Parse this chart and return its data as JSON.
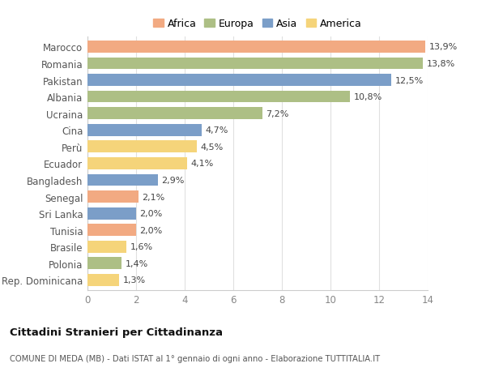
{
  "categories": [
    "Marocco",
    "Romania",
    "Pakistan",
    "Albania",
    "Ucraina",
    "Cina",
    "Perù",
    "Ecuador",
    "Bangladesh",
    "Senegal",
    "Sri Lanka",
    "Tunisia",
    "Brasile",
    "Polonia",
    "Rep. Dominicana"
  ],
  "values": [
    13.9,
    13.8,
    12.5,
    10.8,
    7.2,
    4.7,
    4.5,
    4.1,
    2.9,
    2.1,
    2.0,
    2.0,
    1.6,
    1.4,
    1.3
  ],
  "labels": [
    "13,9%",
    "13,8%",
    "12,5%",
    "10,8%",
    "7,2%",
    "4,7%",
    "4,5%",
    "4,1%",
    "2,9%",
    "2,1%",
    "2,0%",
    "2,0%",
    "1,6%",
    "1,4%",
    "1,3%"
  ],
  "continents": [
    "Africa",
    "Europa",
    "Asia",
    "Europa",
    "Europa",
    "Asia",
    "America",
    "America",
    "Asia",
    "Africa",
    "Asia",
    "Africa",
    "America",
    "Europa",
    "America"
  ],
  "colors": {
    "Africa": "#F2AA82",
    "Europa": "#ADBF85",
    "Asia": "#7B9EC8",
    "America": "#F5D47A"
  },
  "legend_order": [
    "Africa",
    "Europa",
    "Asia",
    "America"
  ],
  "title": "Cittadini Stranieri per Cittadinanza",
  "subtitle": "COMUNE DI MEDA (MB) - Dati ISTAT al 1° gennaio di ogni anno - Elaborazione TUTTITALIA.IT",
  "xlim": [
    0,
    14
  ],
  "xticks": [
    0,
    2,
    4,
    6,
    8,
    10,
    12,
    14
  ],
  "bg_color": "#ffffff",
  "grid_color": "#e0e0e0"
}
